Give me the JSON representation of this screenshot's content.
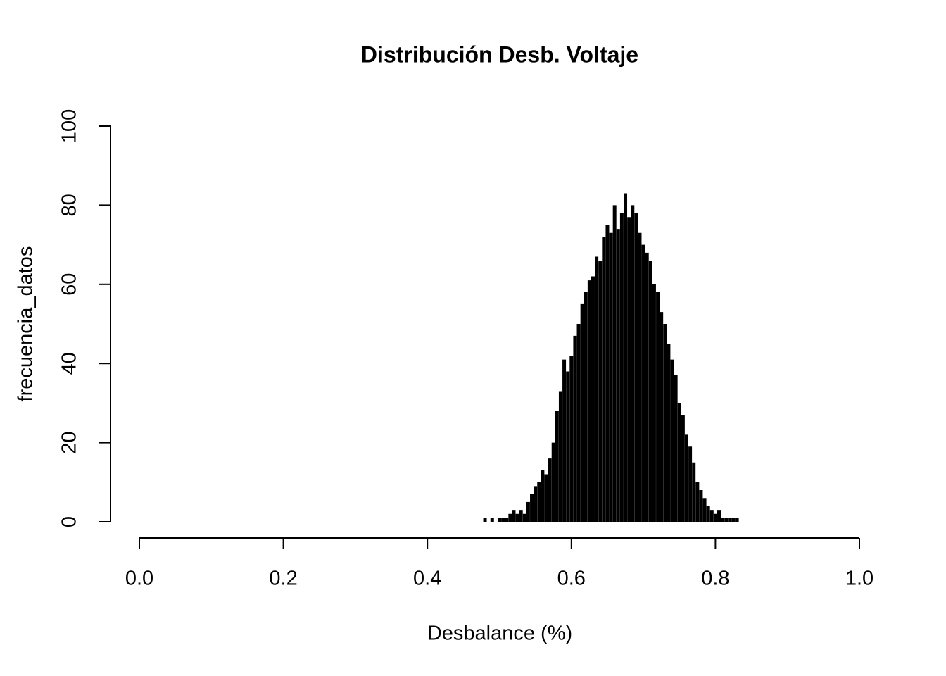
{
  "chart_data": {
    "type": "spike",
    "title": "Distribución Desb. Voltaje",
    "x_label": "Desbalance (%)",
    "y_label": "frecuencia_datos",
    "color": "#000000",
    "x": [
      0.48,
      0.485,
      0.49,
      0.495,
      0.5,
      0.505,
      0.51,
      0.515,
      0.52,
      0.525,
      0.53,
      0.535,
      0.54,
      0.545,
      0.55,
      0.555,
      0.56,
      0.565,
      0.57,
      0.575,
      0.58,
      0.585,
      0.59,
      0.595,
      0.6,
      0.605,
      0.61,
      0.615,
      0.62,
      0.625,
      0.63,
      0.635,
      0.64,
      0.645,
      0.65,
      0.655,
      0.66,
      0.665,
      0.67,
      0.675,
      0.68,
      0.685,
      0.69,
      0.695,
      0.7,
      0.705,
      0.71,
      0.715,
      0.72,
      0.725,
      0.73,
      0.735,
      0.74,
      0.745,
      0.75,
      0.755,
      0.76,
      0.765,
      0.77,
      0.775,
      0.78,
      0.785,
      0.79,
      0.795,
      0.8,
      0.805,
      0.81,
      0.815,
      0.82,
      0.825,
      0.83
    ],
    "values": [
      1,
      0,
      1,
      0,
      1,
      1,
      1,
      2,
      3,
      2,
      3,
      2,
      5,
      7,
      9,
      10,
      13,
      12,
      16,
      20,
      28,
      33,
      41,
      38,
      42,
      47,
      50,
      55,
      58,
      61,
      62,
      67,
      66,
      72,
      75,
      73,
      80,
      74,
      78,
      83,
      77,
      80,
      78,
      73,
      70,
      68,
      66,
      60,
      58,
      53,
      50,
      45,
      41,
      37,
      30,
      27,
      22,
      19,
      15,
      10,
      8,
      6,
      4,
      3,
      2,
      3,
      1,
      1,
      1,
      1,
      1
    ],
    "xlim": [
      0,
      1
    ],
    "ylim": [
      0,
      100
    ],
    "xticks": [
      {
        "value": 0,
        "label": "0.0"
      },
      0.2,
      0.4,
      0.6,
      0.8,
      {
        "value": 1,
        "label": "1.0"
      }
    ],
    "yticks": [
      0,
      20,
      40,
      60,
      80,
      100
    ]
  }
}
